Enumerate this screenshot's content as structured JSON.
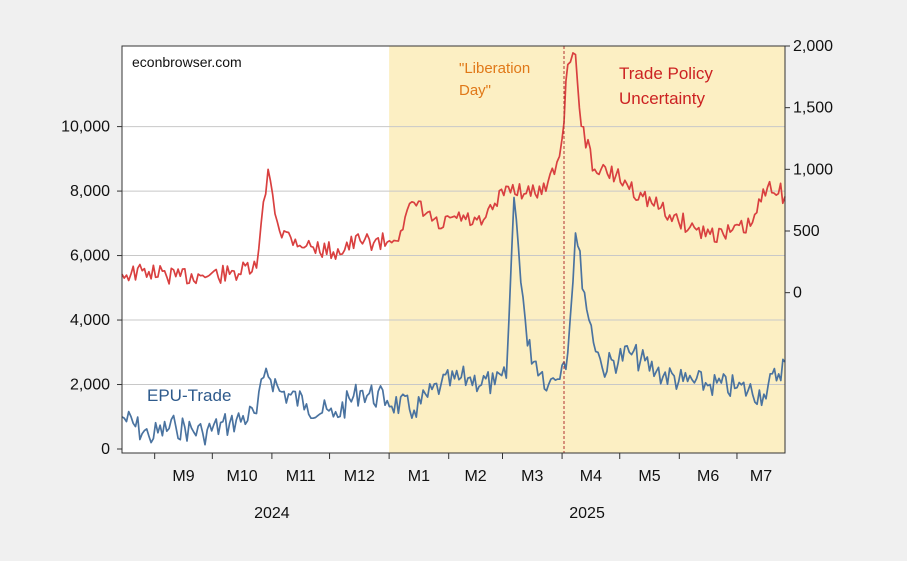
{
  "chart_data": {
    "type": "line",
    "watermark": "econbrowser.com",
    "annotations": {
      "event_line1": "\"Liberation",
      "event_line2": "Day\"",
      "event_date": "2025-04-02",
      "shade_start": "2025-01-01",
      "right_series_line1": "Trade Policy",
      "right_series_line2": "Uncertainty",
      "left_series_label": "EPU-Trade"
    },
    "x_axis": {
      "range": [
        "2024-08-15",
        "2025-07-26"
      ],
      "month_ticks": [
        "2024-09-01",
        "2024-10-01",
        "2024-11-01",
        "2024-12-01",
        "2025-01-01",
        "2025-02-01",
        "2025-03-01",
        "2025-04-01",
        "2025-05-01",
        "2025-06-01",
        "2025-07-01",
        "2025-08-01"
      ],
      "month_labels": [
        "M9",
        "M10",
        "M11",
        "M12",
        "M1",
        "M2",
        "M3",
        "M4",
        "M5",
        "M6",
        "M7"
      ],
      "year_labels": [
        "2024",
        "2025"
      ]
    },
    "left_axis": {
      "ylim": [
        0,
        12500
      ],
      "ticks": [
        0,
        2000,
        4000,
        6000,
        8000,
        10000
      ],
      "tick_labels": [
        "0",
        "2,000",
        "4,000",
        "6,000",
        "8,000",
        "10,000"
      ]
    },
    "right_axis": {
      "ylim": [
        -1300,
        2000
      ],
      "ticks": [
        0,
        500,
        1000,
        1500,
        2000
      ],
      "tick_labels": [
        "0",
        "500",
        "1,000",
        "1,500",
        "2,000"
      ]
    },
    "grid": true,
    "colors": {
      "epu_trade": "#4a73a0",
      "tpu": "#d94040",
      "shade": "#fcefc3",
      "event_line": "#b03030",
      "event_text": "#e07818",
      "tpu_text": "#cc2222",
      "epu_text": "#2e5a8c"
    },
    "series": [
      {
        "name": "EPU-Trade",
        "axis": "left",
        "x": [
          "2024-08-15",
          "2024-08-29",
          "2024-09-12",
          "2024-09-26",
          "2024-10-10",
          "2024-10-24",
          "2024-10-29",
          "2024-11-05",
          "2024-11-19",
          "2024-12-03",
          "2024-12-17",
          "2024-12-31",
          "2025-01-14",
          "2025-01-28",
          "2025-02-11",
          "2025-02-25",
          "2025-03-03",
          "2025-03-07",
          "2025-03-14",
          "2025-03-25",
          "2025-04-01",
          "2025-04-04",
          "2025-04-08",
          "2025-04-15",
          "2025-04-22",
          "2025-05-06",
          "2025-05-20",
          "2025-06-03",
          "2025-06-17",
          "2025-07-01",
          "2025-07-15",
          "2025-07-26"
        ],
        "values": [
          1000,
          400,
          700,
          500,
          800,
          1100,
          2500,
          1800,
          1400,
          1000,
          1800,
          1500,
          1200,
          2000,
          2200,
          2000,
          2200,
          7800,
          3200,
          2000,
          2600,
          3000,
          6700,
          4000,
          2500,
          3000,
          2400,
          2100,
          2000,
          1900,
          1700,
          2700
        ]
      },
      {
        "name": "Trade Policy Uncertainty",
        "axis": "right",
        "x": [
          "2024-08-15",
          "2024-08-29",
          "2024-09-12",
          "2024-09-26",
          "2024-10-10",
          "2024-10-24",
          "2024-10-30",
          "2024-11-05",
          "2024-11-19",
          "2024-12-03",
          "2024-12-17",
          "2024-12-31",
          "2025-01-07",
          "2025-01-14",
          "2025-01-28",
          "2025-02-04",
          "2025-02-18",
          "2025-03-04",
          "2025-03-18",
          "2025-03-28",
          "2025-04-01",
          "2025-04-04",
          "2025-04-08",
          "2025-04-11",
          "2025-04-18",
          "2025-04-29",
          "2025-05-13",
          "2025-05-27",
          "2025-06-10",
          "2025-06-24",
          "2025-07-08",
          "2025-07-18",
          "2025-07-26"
        ],
        "values": [
          150,
          170,
          130,
          140,
          150,
          200,
          1000,
          500,
          380,
          330,
          420,
          410,
          500,
          730,
          520,
          620,
          550,
          860,
          800,
          960,
          1250,
          1850,
          1930,
          1350,
          1000,
          950,
          780,
          630,
          510,
          470,
          540,
          900,
          780
        ]
      }
    ]
  }
}
